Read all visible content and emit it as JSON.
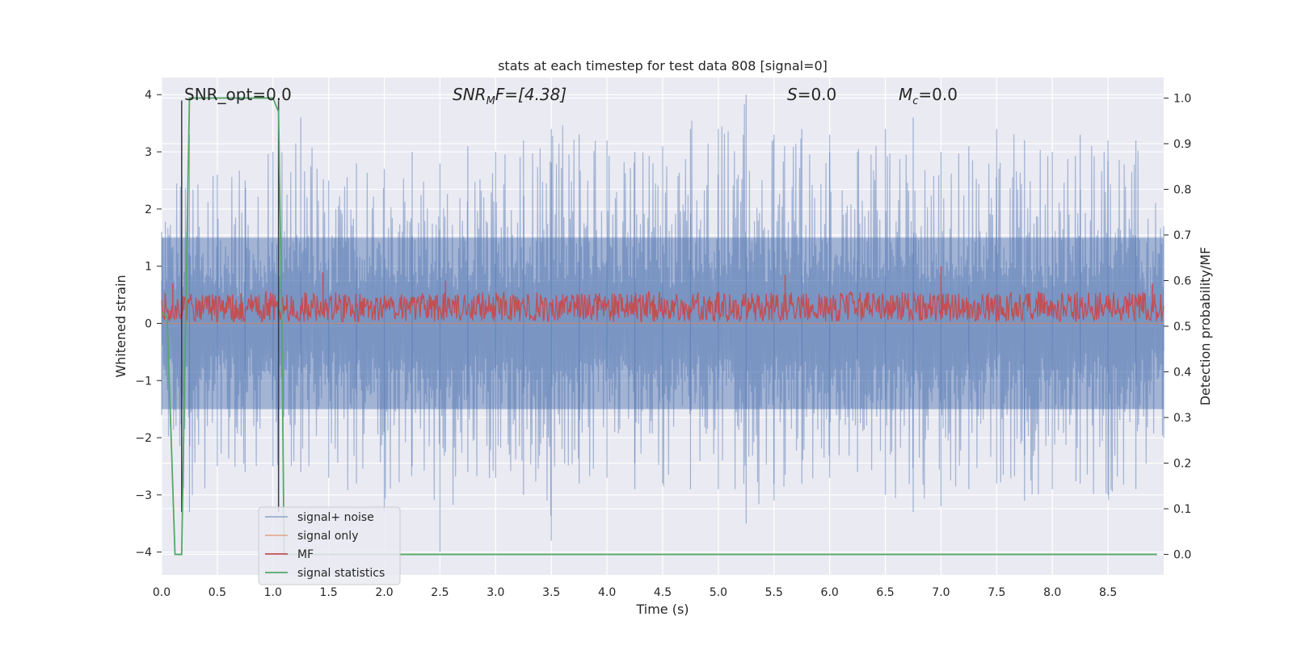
{
  "chart_data": {
    "type": "line",
    "title": "stats at each timestep for test data 808 [signal=0]",
    "xlabel": "Time (s)",
    "ylabel": "Whitened strain",
    "ylabel_right": "Detection probability/MF",
    "xlim": [
      0.0,
      9.0
    ],
    "ylim": [
      -4.4,
      4.3
    ],
    "ylim_right": [
      -0.045,
      1.045
    ],
    "x_ticks": [
      "0.0",
      "0.5",
      "1.0",
      "1.5",
      "2.0",
      "2.5",
      "3.0",
      "3.5",
      "4.0",
      "4.5",
      "5.0",
      "5.5",
      "6.0",
      "6.5",
      "7.0",
      "7.5",
      "8.0",
      "8.5"
    ],
    "y_ticks": [
      "4",
      "3",
      "2",
      "1",
      "0",
      "−1",
      "−2",
      "−3",
      "−4"
    ],
    "y_tick_values": [
      4,
      3,
      2,
      1,
      0,
      -1,
      -2,
      -3,
      -4
    ],
    "y_right_ticks": [
      "1.0",
      "0.9",
      "0.8",
      "0.7",
      "0.6",
      "0.5",
      "0.4",
      "0.3",
      "0.2",
      "0.1",
      "0.0"
    ],
    "y_right_tick_values": [
      1.0,
      0.9,
      0.8,
      0.7,
      0.6,
      0.5,
      0.4,
      0.3,
      0.2,
      0.1,
      0.0
    ],
    "annotations": [
      {
        "id": "snr_opt",
        "prefix": "SNR_opt=0.0",
        "sub": "",
        "suffix": ""
      },
      {
        "id": "snr_mf",
        "prefix": "SNR",
        "sub": "M",
        "suffix": "F=[4.38]"
      },
      {
        "id": "s",
        "prefix": "S",
        "sub": "",
        "suffix": "=0.0"
      },
      {
        "id": "mc",
        "prefix": "M",
        "sub": "c",
        "suffix": "=0.0"
      }
    ],
    "grid": true,
    "legend_position": "lower-left",
    "series": [
      {
        "name": "signal+ noise",
        "color": "#4c72b0",
        "axis": "left",
        "envelope": {
          "t": [
            0.0,
            0.25,
            0.5,
            0.75,
            1.0,
            1.25,
            1.5,
            1.75,
            2.0,
            2.25,
            2.5,
            2.75,
            3.0,
            3.25,
            3.5,
            3.75,
            4.0,
            4.25,
            4.5,
            4.75,
            5.0,
            5.25,
            5.5,
            5.75,
            6.0,
            6.25,
            6.5,
            6.75,
            7.0,
            7.25,
            7.5,
            7.75,
            8.0,
            8.25,
            8.5,
            8.75,
            9.0
          ],
          "upper": [
            1.6,
            3.3,
            2.6,
            2.5,
            3.0,
            3.6,
            2.5,
            2.8,
            2.7,
            3.0,
            2.8,
            3.1,
            3.0,
            3.2,
            3.4,
            3.3,
            3.2,
            3.0,
            3.1,
            3.4,
            3.4,
            4.0,
            3.3,
            3.4,
            3.3,
            3.0,
            3.4,
            3.6,
            3.0,
            3.1,
            3.4,
            3.2,
            3.0,
            3.3,
            3.2,
            3.2,
            1.7
          ],
          "lower": [
            -1.6,
            -3.3,
            -2.5,
            -2.6,
            -2.5,
            -2.6,
            -2.7,
            -2.8,
            -3.3,
            -2.5,
            -4.0,
            -2.6,
            -2.7,
            -3.0,
            -3.8,
            -2.8,
            -2.7,
            -2.9,
            -2.8,
            -2.9,
            -2.9,
            -3.5,
            -3.1,
            -2.8,
            -2.7,
            -2.6,
            -3.0,
            -3.3,
            -3.2,
            -2.9,
            -2.8,
            -3.1,
            -2.9,
            -2.8,
            -3.0,
            -2.9,
            -2.0
          ]
        }
      },
      {
        "name": "signal only",
        "color": "#dd8452",
        "axis": "left",
        "x": [
          0.0,
          9.0
        ],
        "y": [
          0.0,
          0.0
        ]
      },
      {
        "name": "MF",
        "color": "#c44e52",
        "axis": "left",
        "band": [
          0.03,
          0.55
        ],
        "spikes": [
          {
            "x": 0.1,
            "y": 0.7
          },
          {
            "x": 1.45,
            "y": 0.9
          },
          {
            "x": 2.55,
            "y": 0.75
          },
          {
            "x": 5.6,
            "y": 0.85
          },
          {
            "x": 7.0,
            "y": 1.0
          },
          {
            "x": 8.9,
            "y": 0.7
          }
        ]
      },
      {
        "name": "signal statistics",
        "color": "#55a868",
        "axis": "right",
        "x": [
          0.0,
          0.05,
          0.12,
          0.18,
          0.25,
          0.5,
          1.0,
          1.05,
          1.08,
          1.1,
          1.15,
          2.0,
          4.0,
          6.0,
          8.0,
          8.94
        ],
        "y": [
          0.53,
          0.52,
          0.0,
          0.0,
          1.0,
          1.0,
          1.0,
          0.97,
          0.5,
          0.0,
          0.0,
          0.0,
          0.0,
          0.0,
          0.0,
          0.0
        ]
      }
    ],
    "vertical_markers": [
      0.18,
      1.05
    ]
  }
}
